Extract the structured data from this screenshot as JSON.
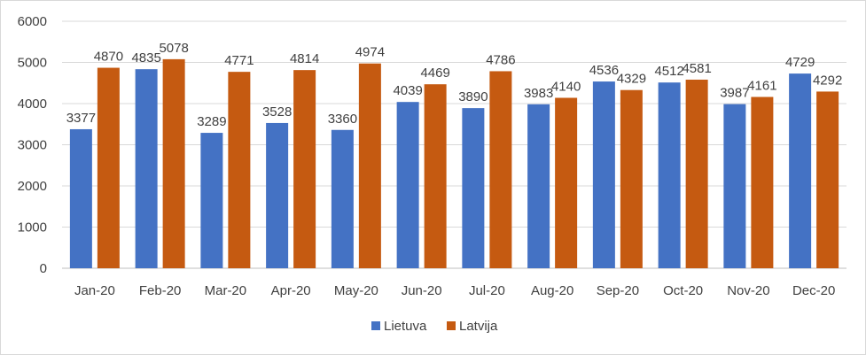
{
  "chart_data": {
    "type": "bar",
    "categories": [
      "Jan-20",
      "Feb-20",
      "Mar-20",
      "Apr-20",
      "May-20",
      "Jun-20",
      "Jul-20",
      "Aug-20",
      "Sep-20",
      "Oct-20",
      "Nov-20",
      "Dec-20"
    ],
    "series": [
      {
        "name": "Lietuva",
        "color": "#4472C4",
        "values": [
          3377,
          4835,
          3289,
          3528,
          3360,
          4039,
          3890,
          3983,
          4536,
          4512,
          3987,
          4729
        ]
      },
      {
        "name": "Latvija",
        "color": "#C55A11",
        "values": [
          4870,
          5078,
          4771,
          4814,
          4974,
          4469,
          4786,
          4140,
          4329,
          4581,
          4161,
          4292
        ]
      }
    ],
    "ylim": [
      0,
      6000
    ],
    "yticks": [
      "0",
      "1000",
      "2000",
      "3000",
      "4000",
      "5000",
      "6000"
    ],
    "grid": true,
    "legend_position": "bottom"
  }
}
